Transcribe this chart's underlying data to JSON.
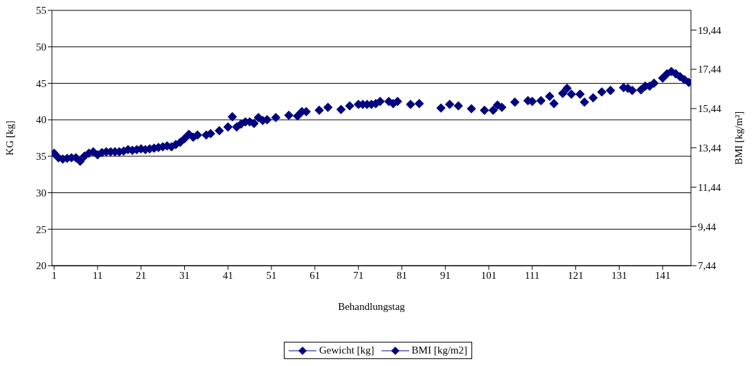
{
  "chart_data": {
    "type": "scatter",
    "xlabel": "Behandlungstag",
    "ylabel": "KG [kg]",
    "y2label": "BMI [kg/m²]",
    "x": [
      1,
      2,
      3,
      4,
      5,
      6,
      7,
      8,
      9,
      10,
      11,
      12,
      13,
      14,
      15,
      16,
      17,
      18,
      19,
      20,
      21,
      22,
      23,
      24,
      25,
      26,
      27,
      28,
      29,
      30,
      31,
      32,
      33,
      34,
      35,
      36,
      37,
      38,
      39,
      40,
      41,
      42,
      43,
      44,
      45,
      46,
      47,
      48,
      49,
      50,
      51,
      52,
      53,
      54,
      55,
      56,
      57,
      58,
      59,
      60,
      61,
      62,
      63,
      64,
      65,
      66,
      67,
      68,
      69,
      70,
      71,
      72,
      73,
      74,
      75,
      76,
      77,
      78,
      79,
      80,
      81,
      82,
      83,
      84,
      85,
      86,
      87,
      88,
      89,
      90,
      91,
      92,
      93,
      94,
      95,
      96,
      97,
      98,
      99,
      100,
      101,
      102,
      103,
      104,
      105,
      106,
      107,
      108,
      109,
      110,
      111,
      112,
      113,
      114,
      115,
      116,
      117,
      118,
      119,
      120,
      121,
      122,
      123,
      124,
      125,
      126,
      127,
      128,
      129,
      130,
      131,
      132,
      133,
      134,
      135,
      136,
      137,
      138,
      139,
      140,
      141,
      142,
      143,
      144,
      145,
      146,
      147
    ],
    "xlim": [
      0.5,
      147.5
    ],
    "xticks": [
      1,
      11,
      21,
      31,
      41,
      51,
      61,
      71,
      81,
      91,
      101,
      111,
      121,
      131,
      141
    ],
    "ylim": [
      20,
      55
    ],
    "yticks": [
      20,
      25,
      30,
      35,
      40,
      45,
      50,
      55
    ],
    "y2lim": [
      7.44,
      20.44
    ],
    "y2ticks": [
      {
        "value": 7.44,
        "label": "7,44"
      },
      {
        "value": 9.44,
        "label": "9,44"
      },
      {
        "value": 11.44,
        "label": "11,44"
      },
      {
        "value": 13.44,
        "label": "13,44"
      },
      {
        "value": 15.44,
        "label": "15,44"
      },
      {
        "value": 17.44,
        "label": "17,44"
      },
      {
        "value": 19.44,
        "label": "19,44"
      }
    ],
    "grid": "y",
    "legend": "bottom",
    "marker": "diamond",
    "series": [
      {
        "name": "Gewicht [kg]",
        "color": "#000080",
        "values": [
          35.4,
          34.8,
          34.6,
          34.7,
          34.8,
          34.8,
          34.3,
          35.0,
          35.4,
          35.6,
          35.2,
          35.5,
          35.6,
          35.6,
          35.6,
          35.6,
          35.7,
          35.9,
          35.8,
          35.9,
          36.0,
          35.9,
          36.0,
          36.1,
          36.2,
          36.3,
          36.4,
          36.3,
          36.6,
          36.9,
          37.4,
          38.0,
          37.6,
          37.9,
          null,
          37.9,
          38.1,
          null,
          38.5,
          null,
          39.0,
          40.4,
          39.0,
          39.4,
          39.7,
          39.7,
          39.5,
          40.3,
          39.9,
          40.0,
          null,
          40.3,
          null,
          null,
          40.6,
          null,
          40.5,
          41.1,
          41.1,
          null,
          null,
          41.3,
          null,
          41.7,
          null,
          null,
          41.4,
          null,
          41.9,
          null,
          42.1,
          42.1,
          42.1,
          42.1,
          42.2,
          42.5,
          null,
          42.5,
          42.2,
          42.5,
          null,
          null,
          42.1,
          null,
          42.2,
          null,
          null,
          null,
          null,
          41.6,
          null,
          42.1,
          null,
          41.9,
          null,
          null,
          41.5,
          null,
          null,
          41.3,
          null,
          41.3,
          42.0,
          41.7,
          null,
          null,
          42.4,
          null,
          null,
          42.6,
          42.5,
          null,
          42.6,
          null,
          43.2,
          42.2,
          null,
          43.6,
          44.3,
          43.5,
          null,
          43.5,
          42.4,
          null,
          43.0,
          null,
          43.8,
          null,
          44.0,
          null,
          null,
          44.4,
          44.3,
          44.0,
          null,
          44.1,
          44.6,
          44.6,
          45.0,
          null,
          45.7,
          46.3,
          46.6,
          46.3,
          45.9,
          45.5,
          45.1
        ]
      },
      {
        "name": "BMI [kg/m2]",
        "color": "#000080",
        "axis": "y2",
        "values": [
          13.17,
          12.94,
          12.87,
          12.91,
          12.94,
          12.94,
          12.76,
          13.02,
          13.17,
          13.24,
          13.09,
          13.2,
          13.24,
          13.24,
          13.24,
          13.24,
          13.28,
          13.35,
          13.32,
          13.35,
          13.39,
          13.35,
          13.39,
          13.43,
          13.46,
          13.5,
          13.54,
          13.5,
          13.61,
          13.72,
          13.91,
          14.13,
          13.99,
          14.1,
          null,
          14.1,
          14.17,
          null,
          14.32,
          null,
          14.51,
          15.03,
          14.51,
          14.65,
          14.77,
          14.77,
          14.69,
          14.99,
          14.84,
          14.88,
          null,
          14.99,
          null,
          null,
          15.1,
          null,
          15.06,
          15.29,
          15.29,
          null,
          null,
          15.36,
          null,
          15.51,
          null,
          null,
          15.4,
          null,
          15.58,
          null,
          15.66,
          15.66,
          15.66,
          15.66,
          15.7,
          15.81,
          null,
          15.81,
          15.7,
          15.81,
          null,
          null,
          15.66,
          null,
          15.7,
          null,
          null,
          null,
          null,
          15.47,
          null,
          15.66,
          null,
          15.58,
          null,
          null,
          15.44,
          null,
          null,
          15.36,
          null,
          15.36,
          15.62,
          15.51,
          null,
          null,
          15.77,
          null,
          null,
          15.85,
          15.81,
          null,
          15.85,
          null,
          16.07,
          15.7,
          null,
          16.22,
          16.48,
          16.18,
          null,
          16.18,
          15.77,
          null,
          15.99,
          null,
          16.29,
          null,
          16.37,
          null,
          null,
          16.51,
          16.48,
          16.37,
          null,
          16.4,
          16.59,
          16.59,
          16.74,
          null,
          17.0,
          17.22,
          17.33,
          17.22,
          17.07,
          16.92,
          16.78
        ]
      }
    ]
  }
}
